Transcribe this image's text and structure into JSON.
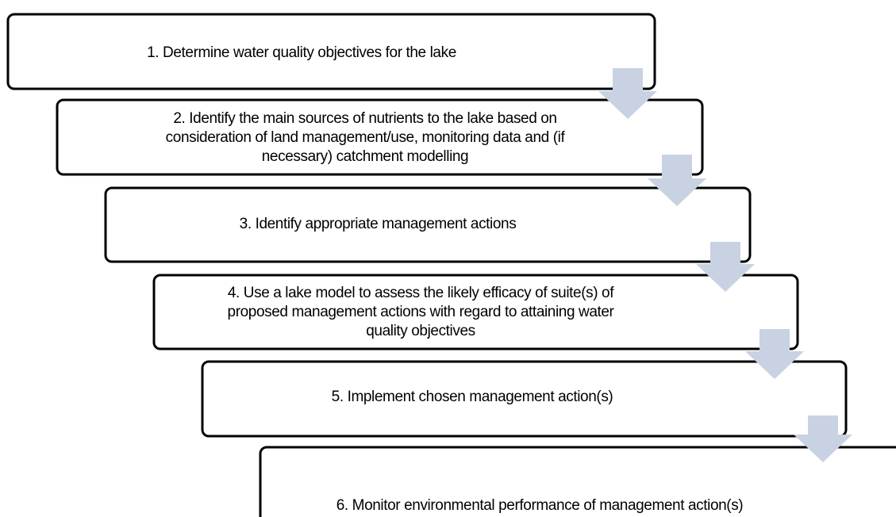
{
  "steps": [
    {
      "lines": [
        "1. Determine water quality objectives for  the lake"
      ]
    },
    {
      "lines": [
        "2. Identify the main sources of nutrients to the lake based on",
        "consideration of land management/use, monitoring data and (if",
        "necessary) catchment modelling"
      ]
    },
    {
      "lines": [
        "3. Identify appropriate management actions"
      ]
    },
    {
      "lines": [
        "4. Use a lake model to assess the likely efficacy of suite(s) of",
        "proposed management actions with regard to attaining water",
        "quality objectives"
      ]
    },
    {
      "lines": [
        "5. Implement chosen management action(s)"
      ]
    },
    {
      "lines": [
        "6. Monitor environmental performance of management action(s)"
      ]
    }
  ]
}
